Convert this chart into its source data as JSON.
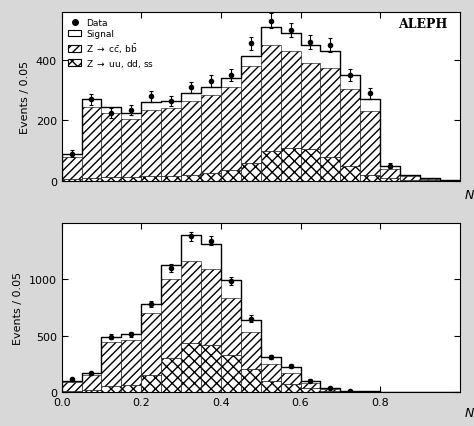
{
  "top_plot": {
    "bins": [
      0.0,
      0.05,
      0.1,
      0.15,
      0.2,
      0.25,
      0.3,
      0.35,
      0.4,
      0.45,
      0.5,
      0.55,
      0.6,
      0.65,
      0.7,
      0.75,
      0.8,
      0.85,
      0.9,
      0.95,
      1.0
    ],
    "signal": [
      90,
      270,
      245,
      225,
      260,
      265,
      290,
      310,
      340,
      415,
      510,
      490,
      450,
      430,
      350,
      270,
      50,
      18,
      8,
      3
    ],
    "cc_bb": [
      80,
      245,
      225,
      205,
      235,
      240,
      265,
      285,
      310,
      380,
      450,
      430,
      390,
      375,
      305,
      230,
      40,
      14,
      6,
      2
    ],
    "uu_dd_ss": [
      5,
      10,
      12,
      12,
      15,
      15,
      20,
      25,
      35,
      60,
      100,
      110,
      105,
      80,
      50,
      18,
      8,
      4,
      2,
      1
    ],
    "data_x": [
      0.025,
      0.075,
      0.125,
      0.175,
      0.225,
      0.275,
      0.325,
      0.375,
      0.425,
      0.475,
      0.525,
      0.575,
      0.625,
      0.675,
      0.725,
      0.775,
      0.825
    ],
    "data_y": [
      90,
      270,
      225,
      235,
      280,
      265,
      310,
      330,
      350,
      455,
      530,
      500,
      460,
      450,
      350,
      290,
      50
    ],
    "data_err": [
      12,
      18,
      16,
      16,
      18,
      17,
      18,
      19,
      20,
      23,
      25,
      24,
      23,
      23,
      20,
      18,
      8
    ],
    "ylabel": "Events / 0.05",
    "xlabel": "$N_e$",
    "ylim": [
      0,
      560
    ],
    "yticks": [
      0,
      200,
      400
    ],
    "title": "ALEPH"
  },
  "bottom_plot": {
    "bins": [
      0.0,
      0.05,
      0.1,
      0.15,
      0.2,
      0.25,
      0.3,
      0.35,
      0.4,
      0.45,
      0.5,
      0.55,
      0.6,
      0.65,
      0.7,
      0.75,
      0.8,
      0.85,
      0.9,
      0.95,
      1.0
    ],
    "signal": [
      100,
      165,
      490,
      510,
      780,
      1130,
      1390,
      1310,
      990,
      640,
      310,
      220,
      100,
      35,
      10,
      5,
      2,
      1,
      0,
      0
    ],
    "cc_bb": [
      90,
      150,
      440,
      460,
      700,
      1000,
      1160,
      1090,
      830,
      530,
      250,
      170,
      80,
      28,
      8,
      4,
      1,
      0,
      0,
      0
    ],
    "uu_dd_ss": [
      10,
      15,
      50,
      60,
      150,
      300,
      430,
      420,
      330,
      200,
      100,
      70,
      30,
      10,
      4,
      2,
      1,
      0,
      0,
      0
    ],
    "data_x": [
      0.025,
      0.075,
      0.125,
      0.175,
      0.225,
      0.275,
      0.325,
      0.375,
      0.425,
      0.475,
      0.525,
      0.575,
      0.625,
      0.675,
      0.725
    ],
    "data_y": [
      110,
      165,
      490,
      510,
      780,
      1100,
      1380,
      1340,
      985,
      650,
      310,
      230,
      100,
      36,
      10
    ],
    "data_err": [
      15,
      15,
      25,
      25,
      30,
      35,
      40,
      40,
      35,
      28,
      20,
      17,
      12,
      7,
      4
    ],
    "ylabel": "Events / 0.05",
    "xlabel": "$N_{\\mu}$",
    "ylim": [
      0,
      1500
    ],
    "yticks": [
      0,
      500,
      1000
    ]
  }
}
